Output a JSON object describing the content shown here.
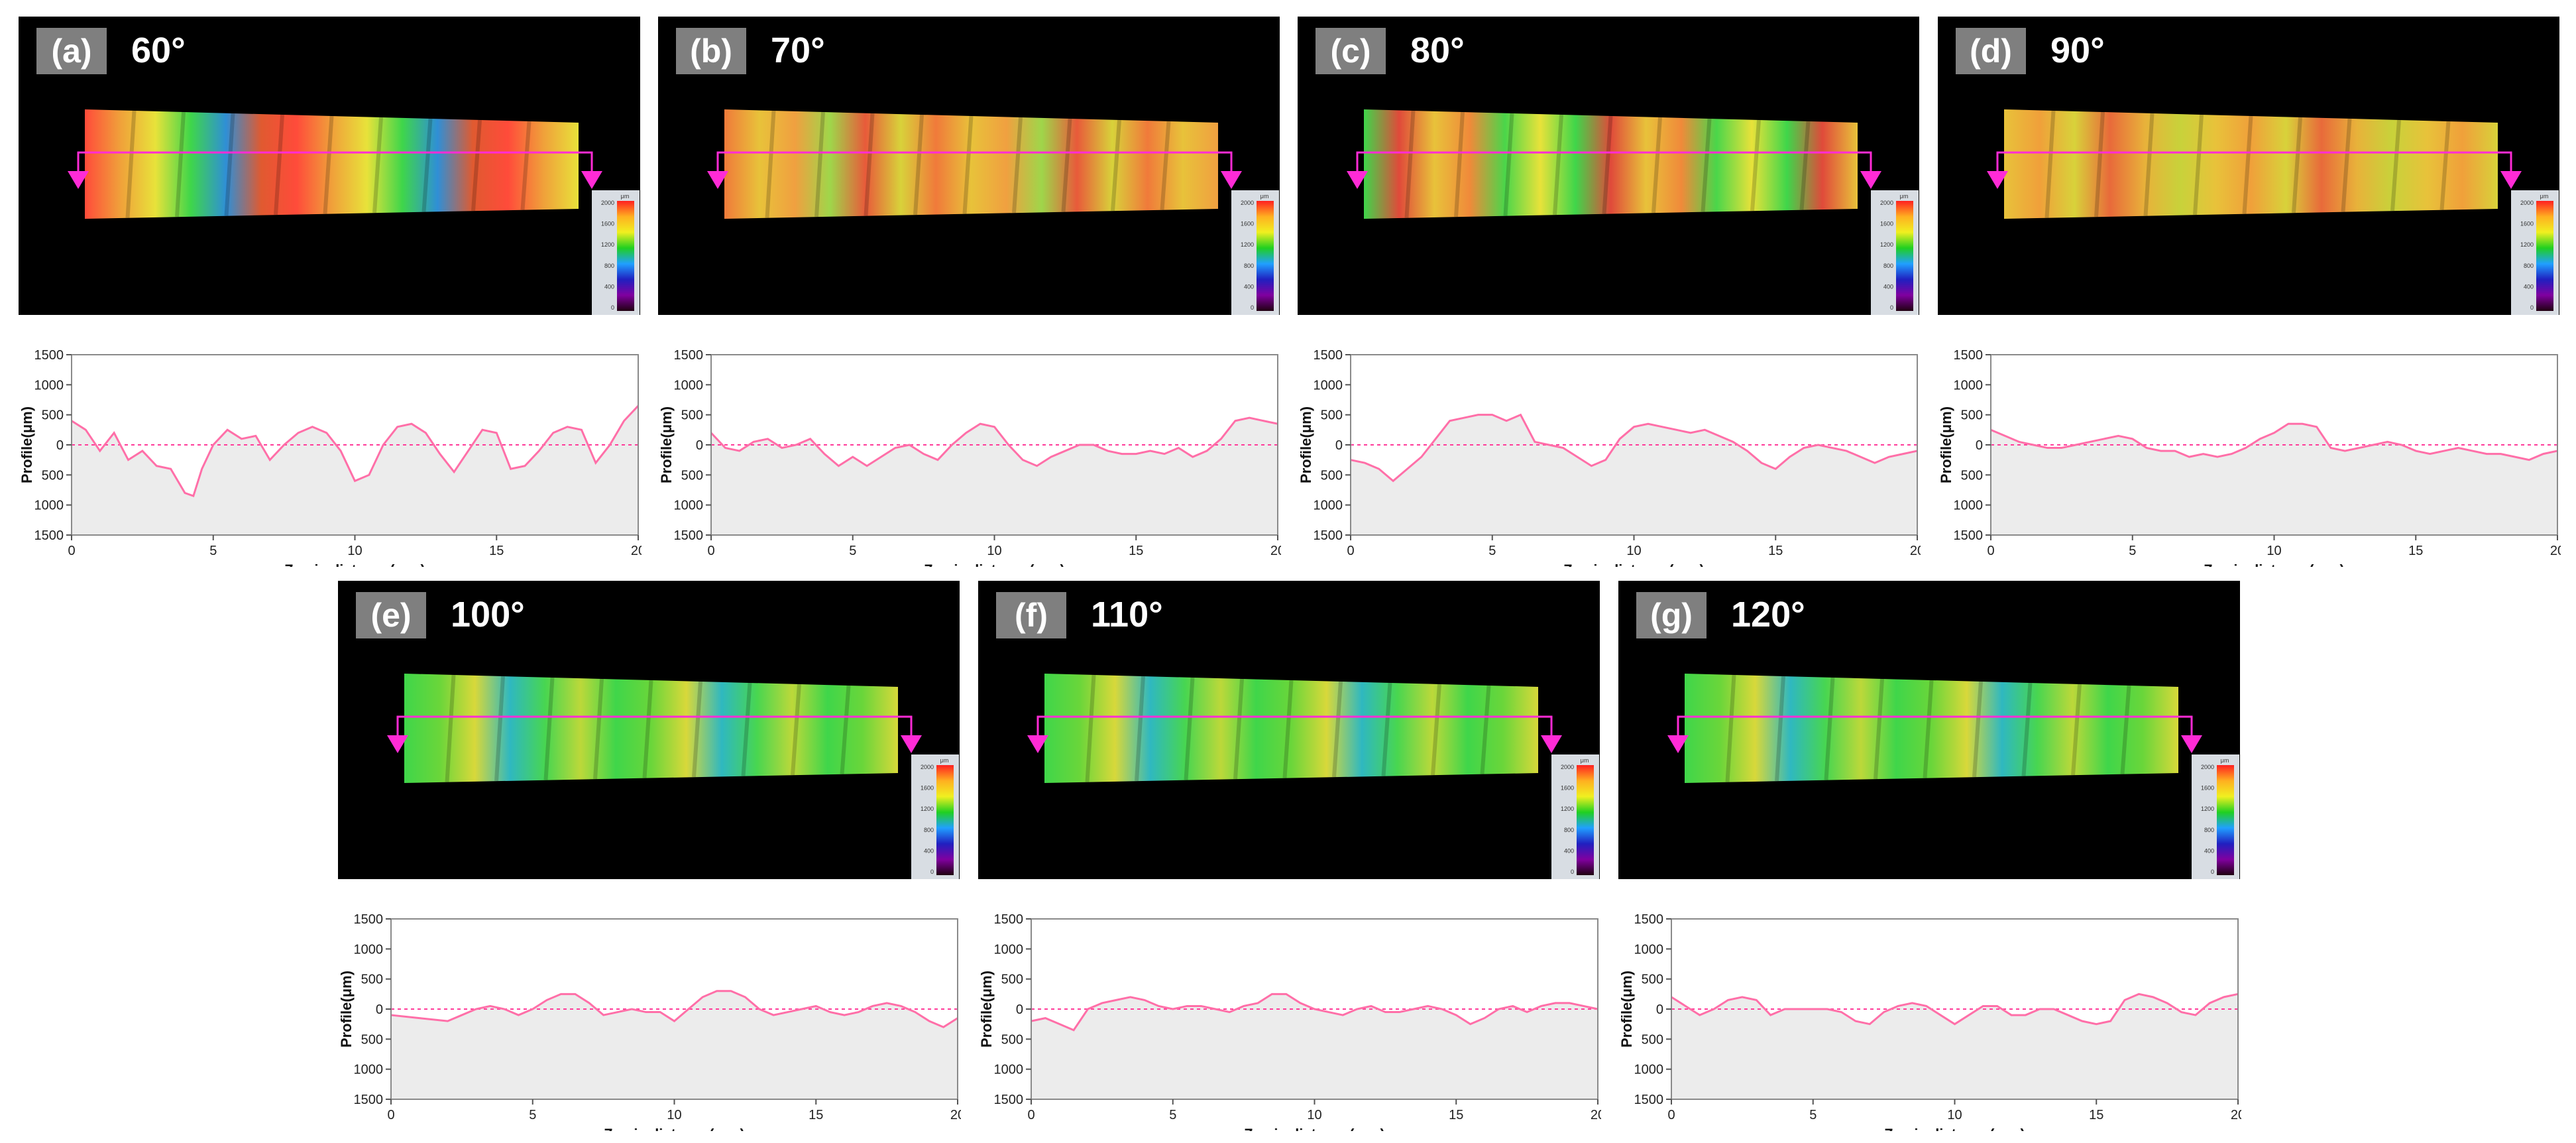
{
  "colors": {
    "profile_line": "#ff6fa8",
    "baseline": "#ff3c9a",
    "fill": "#ececec",
    "arrow": "#ff2bd6",
    "scale_bg": "#d8dde3"
  },
  "scale_labels": {
    "unit": "μm",
    "ticks": [
      "2000",
      "1600",
      "1200",
      "800",
      "400",
      "0"
    ]
  },
  "panels": [
    {
      "tag": "(a)",
      "angle": "60°",
      "surface": "mixed"
    },
    {
      "tag": "(b)",
      "angle": "70°",
      "surface": "warm"
    },
    {
      "tag": "(c)",
      "angle": "80°",
      "surface": "mixed2"
    },
    {
      "tag": "(d)",
      "angle": "90°",
      "surface": "yellow"
    },
    {
      "tag": "(e)",
      "angle": "100°",
      "surface": "green"
    },
    {
      "tag": "(f)",
      "angle": "110°",
      "surface": "green"
    },
    {
      "tag": "(g)",
      "angle": "120°",
      "surface": "green"
    }
  ],
  "chart_data": [
    {
      "type": "line",
      "ylabel": "Profile(μm)",
      "xlabel": "Z-axis distance(mm)",
      "xlim": [
        0,
        20
      ],
      "ylim": [
        -1500,
        1500
      ],
      "yticks": [
        "1500",
        "1000",
        "500",
        "0",
        "500",
        "1000",
        "1500"
      ],
      "xticks": [
        "0",
        "5",
        "10",
        "15",
        "20"
      ],
      "x": [
        0,
        0.5,
        1,
        1.5,
        2,
        2.5,
        3,
        3.5,
        4,
        4.3,
        4.6,
        5,
        5.5,
        6,
        6.5,
        7,
        7.5,
        8,
        8.5,
        9,
        9.5,
        10,
        10.5,
        11,
        11.5,
        12,
        12.5,
        13,
        13.5,
        14,
        14.5,
        15,
        15.5,
        16,
        16.5,
        17,
        17.5,
        18,
        18.5,
        19,
        19.5,
        20
      ],
      "values": [
        400,
        250,
        -100,
        200,
        -250,
        -100,
        -350,
        -400,
        -800,
        -850,
        -400,
        0,
        250,
        100,
        150,
        -250,
        0,
        200,
        300,
        200,
        -100,
        -600,
        -500,
        0,
        300,
        350,
        200,
        -150,
        -450,
        -100,
        250,
        200,
        -400,
        -350,
        -100,
        200,
        300,
        250,
        -300,
        0,
        400,
        650
      ]
    },
    {
      "type": "line",
      "ylabel": "Profile(μm)",
      "xlabel": "Z-axis distance(mm)",
      "xlim": [
        0,
        20
      ],
      "ylim": [
        -1500,
        1500
      ],
      "yticks": [
        "1500",
        "1000",
        "500",
        "0",
        "500",
        "1000",
        "1500"
      ],
      "xticks": [
        "0",
        "5",
        "10",
        "15",
        "20"
      ],
      "x": [
        0,
        0.5,
        1,
        1.5,
        2,
        2.5,
        3,
        3.5,
        4,
        4.5,
        5,
        5.5,
        6,
        6.5,
        7,
        7.5,
        8,
        8.5,
        9,
        9.5,
        10,
        10.5,
        11,
        11.5,
        12,
        12.5,
        13,
        13.5,
        14,
        14.5,
        15,
        15.5,
        16,
        16.5,
        17,
        17.5,
        18,
        18.5,
        19,
        19.5,
        20
      ],
      "values": [
        200,
        -50,
        -100,
        50,
        100,
        -50,
        0,
        100,
        -150,
        -350,
        -200,
        -350,
        -200,
        -50,
        0,
        -150,
        -250,
        0,
        200,
        350,
        300,
        0,
        -250,
        -350,
        -200,
        -100,
        0,
        0,
        -100,
        -150,
        -150,
        -100,
        -150,
        -50,
        -200,
        -100,
        100,
        400,
        450,
        400,
        350
      ]
    },
    {
      "type": "line",
      "ylabel": "Profile(μm)",
      "xlabel": "Z-axis distance(mm)",
      "xlim": [
        0,
        20
      ],
      "ylim": [
        -1500,
        1500
      ],
      "yticks": [
        "1500",
        "1000",
        "500",
        "0",
        "500",
        "1000",
        "1500"
      ],
      "xticks": [
        "0",
        "5",
        "10",
        "15",
        "20"
      ],
      "x": [
        0,
        0.5,
        1,
        1.5,
        2,
        2.5,
        3,
        3.5,
        4,
        4.5,
        5,
        5.5,
        6,
        6.5,
        7,
        7.5,
        8,
        8.5,
        9,
        9.5,
        10,
        10.5,
        11,
        11.5,
        12,
        12.5,
        13,
        13.5,
        14,
        14.5,
        15,
        15.5,
        16,
        16.5,
        17,
        17.5,
        18,
        18.5,
        19,
        19.5,
        20
      ],
      "values": [
        -250,
        -300,
        -400,
        -600,
        -400,
        -200,
        100,
        400,
        450,
        500,
        500,
        400,
        500,
        50,
        0,
        -50,
        -200,
        -350,
        -250,
        100,
        300,
        350,
        300,
        250,
        200,
        250,
        150,
        50,
        -100,
        -300,
        -400,
        -200,
        -50,
        0,
        -50,
        -100,
        -200,
        -300,
        -200,
        -150,
        -100
      ]
    },
    {
      "type": "line",
      "ylabel": "Profile(μm)",
      "xlabel": "Z-axis distance(mm)",
      "xlim": [
        0,
        20
      ],
      "ylim": [
        -1500,
        1500
      ],
      "yticks": [
        "1500",
        "1000",
        "500",
        "0",
        "500",
        "1000",
        "1500"
      ],
      "xticks": [
        "0",
        "5",
        "10",
        "15",
        "20"
      ],
      "x": [
        0,
        0.5,
        1,
        1.5,
        2,
        2.5,
        3,
        3.5,
        4,
        4.5,
        5,
        5.5,
        6,
        6.5,
        7,
        7.5,
        8,
        8.5,
        9,
        9.5,
        10,
        10.5,
        11,
        11.5,
        12,
        12.5,
        13,
        13.5,
        14,
        14.5,
        15,
        15.5,
        16,
        16.5,
        17,
        17.5,
        18,
        18.5,
        19,
        19.5,
        20
      ],
      "values": [
        250,
        150,
        50,
        0,
        -50,
        -50,
        0,
        50,
        100,
        150,
        100,
        -50,
        -100,
        -100,
        -200,
        -150,
        -200,
        -150,
        -50,
        100,
        200,
        350,
        350,
        300,
        -50,
        -100,
        -50,
        0,
        50,
        0,
        -100,
        -150,
        -100,
        -50,
        -100,
        -150,
        -150,
        -200,
        -250,
        -150,
        -100
      ]
    },
    {
      "type": "line",
      "ylabel": "Profile(μm)",
      "xlabel": "Z-axis distance(mm)",
      "xlim": [
        0,
        20
      ],
      "ylim": [
        -1500,
        1500
      ],
      "yticks": [
        "1500",
        "1000",
        "500",
        "0",
        "500",
        "1000",
        "1500"
      ],
      "xticks": [
        "0",
        "5",
        "10",
        "15",
        "20"
      ],
      "x": [
        0,
        1,
        2,
        2.5,
        3,
        3.5,
        4,
        4.5,
        5,
        5.5,
        6,
        6.5,
        7,
        7.5,
        8,
        8.5,
        9,
        9.5,
        10,
        10.5,
        11,
        11.5,
        12,
        12.5,
        13,
        13.5,
        14,
        14.5,
        15,
        15.5,
        16,
        16.5,
        17,
        17.5,
        18,
        18.5,
        19,
        19.5,
        20
      ],
      "values": [
        -100,
        -150,
        -200,
        -100,
        0,
        50,
        0,
        -100,
        0,
        150,
        250,
        250,
        100,
        -100,
        -50,
        0,
        -50,
        -50,
        -200,
        0,
        200,
        300,
        300,
        200,
        0,
        -100,
        -50,
        0,
        50,
        -50,
        -100,
        -50,
        50,
        100,
        50,
        -50,
        -200,
        -300,
        -150
      ]
    },
    {
      "type": "line",
      "ylabel": "Profile(μm)",
      "xlabel": "Z-axis distance(mm)",
      "xlim": [
        0,
        20
      ],
      "ylim": [
        -1500,
        1500
      ],
      "yticks": [
        "1500",
        "1000",
        "500",
        "0",
        "500",
        "1000",
        "1500"
      ],
      "xticks": [
        "0",
        "5",
        "10",
        "15",
        "20"
      ],
      "x": [
        0,
        0.5,
        1,
        1.5,
        2,
        2.5,
        3,
        3.5,
        4,
        4.5,
        5,
        5.5,
        6,
        6.5,
        7,
        7.5,
        8,
        8.5,
        9,
        9.5,
        10,
        10.5,
        11,
        11.5,
        12,
        12.5,
        13,
        13.5,
        14,
        14.5,
        15,
        15.5,
        16,
        16.5,
        17,
        17.5,
        18,
        18.5,
        19,
        19.5,
        20
      ],
      "values": [
        -200,
        -150,
        -250,
        -350,
        0,
        100,
        150,
        200,
        150,
        50,
        0,
        50,
        50,
        0,
        -50,
        50,
        100,
        250,
        250,
        100,
        0,
        -50,
        -100,
        0,
        50,
        -50,
        -50,
        0,
        50,
        0,
        -100,
        -250,
        -150,
        0,
        50,
        -50,
        50,
        100,
        100,
        50,
        0
      ]
    },
    {
      "type": "line",
      "ylabel": "Profile(μm)",
      "xlabel": "Z-axis distance(mm)",
      "xlim": [
        0,
        20
      ],
      "ylim": [
        -1500,
        1500
      ],
      "yticks": [
        "1500",
        "1000",
        "500",
        "0",
        "500",
        "1000",
        "1500"
      ],
      "xticks": [
        "0",
        "5",
        "10",
        "15",
        "20"
      ],
      "x": [
        0,
        0.5,
        1,
        1.5,
        2,
        2.5,
        3,
        3.5,
        4,
        4.5,
        5,
        5.5,
        6,
        6.5,
        7,
        7.5,
        8,
        8.5,
        9,
        9.5,
        10,
        10.5,
        11,
        11.5,
        12,
        12.5,
        13,
        13.5,
        14,
        14.5,
        15,
        15.5,
        16,
        16.5,
        17,
        17.5,
        18,
        18.5,
        19,
        19.5,
        20
      ],
      "values": [
        200,
        50,
        -100,
        0,
        150,
        200,
        150,
        -100,
        0,
        0,
        0,
        0,
        -50,
        -200,
        -250,
        -50,
        50,
        100,
        50,
        -100,
        -250,
        -100,
        50,
        50,
        -100,
        -100,
        0,
        0,
        -100,
        -200,
        -250,
        -200,
        150,
        250,
        200,
        100,
        -50,
        -100,
        100,
        200,
        250
      ]
    }
  ]
}
